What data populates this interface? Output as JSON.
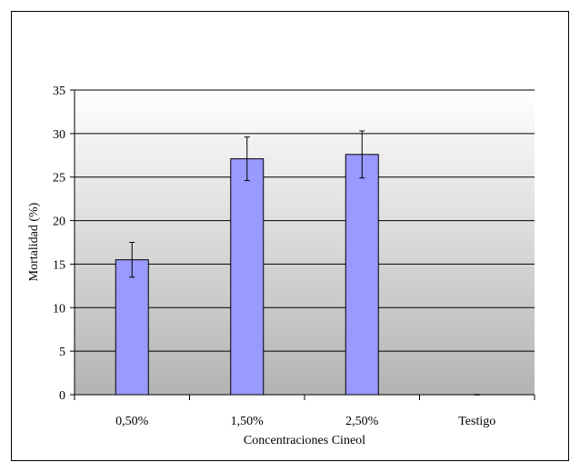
{
  "chart_data": {
    "type": "bar",
    "categories": [
      "0,50%",
      "1,50%",
      "2,50%",
      "Testigo"
    ],
    "values": [
      15.5,
      27.1,
      27.6,
      0
    ],
    "errors": [
      2.0,
      2.5,
      2.7,
      0
    ],
    "title": "",
    "xlabel": "Concentraciones Cineol",
    "ylabel": "Mortalidad (%)",
    "ylim": [
      0,
      35
    ],
    "yticks": [
      0,
      5,
      10,
      15,
      20,
      25,
      30,
      35
    ],
    "grid": true,
    "legend": "none",
    "colors": {
      "bar_fill": "#9999ff",
      "bar_stroke": "#000000",
      "plot_bg_top": "#ffffff",
      "plot_bg_bottom": "#b3b3b3",
      "grid": "#000000"
    }
  }
}
